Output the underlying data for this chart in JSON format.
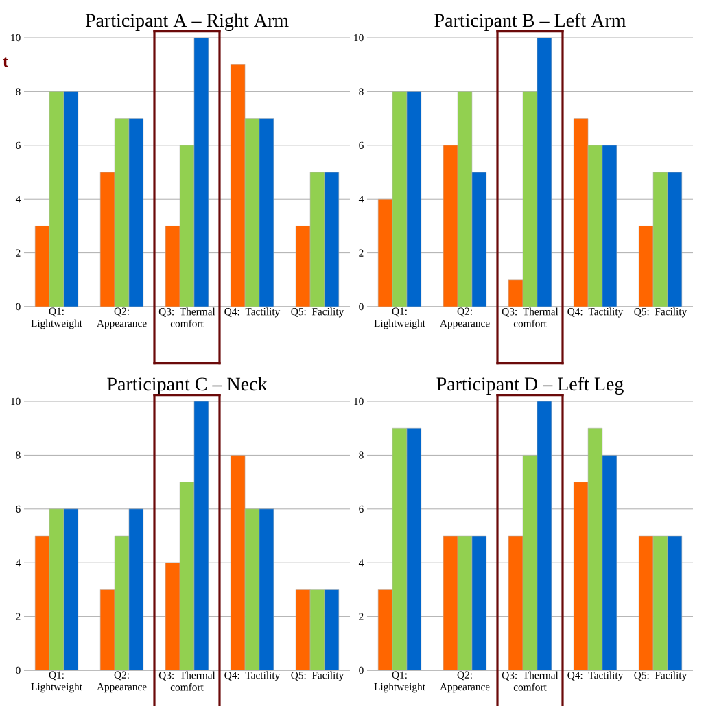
{
  "chart_data": [
    {
      "type": "bar",
      "title": "Participant A – Right Arm",
      "categories": [
        "Q1: Lightweight",
        "Q2: Appearance",
        "Q3: Thermal comfort",
        "Q4: Tactility",
        "Q5: Facility"
      ],
      "series": [
        {
          "color": "#ff6600",
          "values": [
            3,
            5,
            3,
            9,
            3
          ]
        },
        {
          "color": "#92d050",
          "values": [
            8,
            7,
            6,
            7,
            5
          ]
        },
        {
          "color": "#0066cc",
          "values": [
            8,
            7,
            10,
            7,
            5
          ]
        }
      ],
      "ylim": [
        0,
        10
      ],
      "yticks": [
        0,
        2,
        4,
        6,
        8,
        10
      ],
      "grid": "y",
      "annotations": [
        "t"
      ]
    },
    {
      "type": "bar",
      "title": "Participant B – Left Arm",
      "categories": [
        "Q1: Lightweight",
        "Q2: Appearance",
        "Q3: Thermal comfort",
        "Q4: Tactility",
        "Q5: Facility"
      ],
      "series": [
        {
          "color": "#ff6600",
          "values": [
            4,
            6,
            1,
            7,
            3
          ]
        },
        {
          "color": "#92d050",
          "values": [
            8,
            8,
            8,
            6,
            5
          ]
        },
        {
          "color": "#0066cc",
          "values": [
            8,
            5,
            10,
            6,
            5
          ]
        }
      ],
      "ylim": [
        0,
        10
      ],
      "yticks": [
        0,
        2,
        4,
        6,
        8,
        10
      ],
      "grid": "y"
    },
    {
      "type": "bar",
      "title": "Participant C – Neck",
      "categories": [
        "Q1: Lightweight",
        "Q2: Appearance",
        "Q3: Thermal comfort",
        "Q4: Tactility",
        "Q5: Facility"
      ],
      "series": [
        {
          "color": "#ff6600",
          "values": [
            5,
            3,
            4,
            8,
            3
          ]
        },
        {
          "color": "#92d050",
          "values": [
            6,
            5,
            7,
            6,
            3
          ]
        },
        {
          "color": "#0066cc",
          "values": [
            6,
            6,
            10,
            6,
            3
          ]
        }
      ],
      "ylim": [
        0,
        10
      ],
      "yticks": [
        0,
        2,
        4,
        6,
        8,
        10
      ],
      "grid": "y"
    },
    {
      "type": "bar",
      "title": "Participant D – Left Leg",
      "categories": [
        "Q1: Lightweight",
        "Q2: Appearance",
        "Q3: Thermal comfort",
        "Q4: Tactility",
        "Q5: Facility"
      ],
      "series": [
        {
          "color": "#ff6600",
          "values": [
            3,
            5,
            5,
            7,
            5
          ]
        },
        {
          "color": "#92d050",
          "values": [
            9,
            5,
            8,
            9,
            5
          ]
        },
        {
          "color": "#0066cc",
          "values": [
            9,
            5,
            10,
            8,
            5
          ]
        }
      ],
      "ylim": [
        0,
        10
      ],
      "yticks": [
        0,
        2,
        4,
        6,
        8,
        10
      ],
      "grid": "y"
    }
  ]
}
